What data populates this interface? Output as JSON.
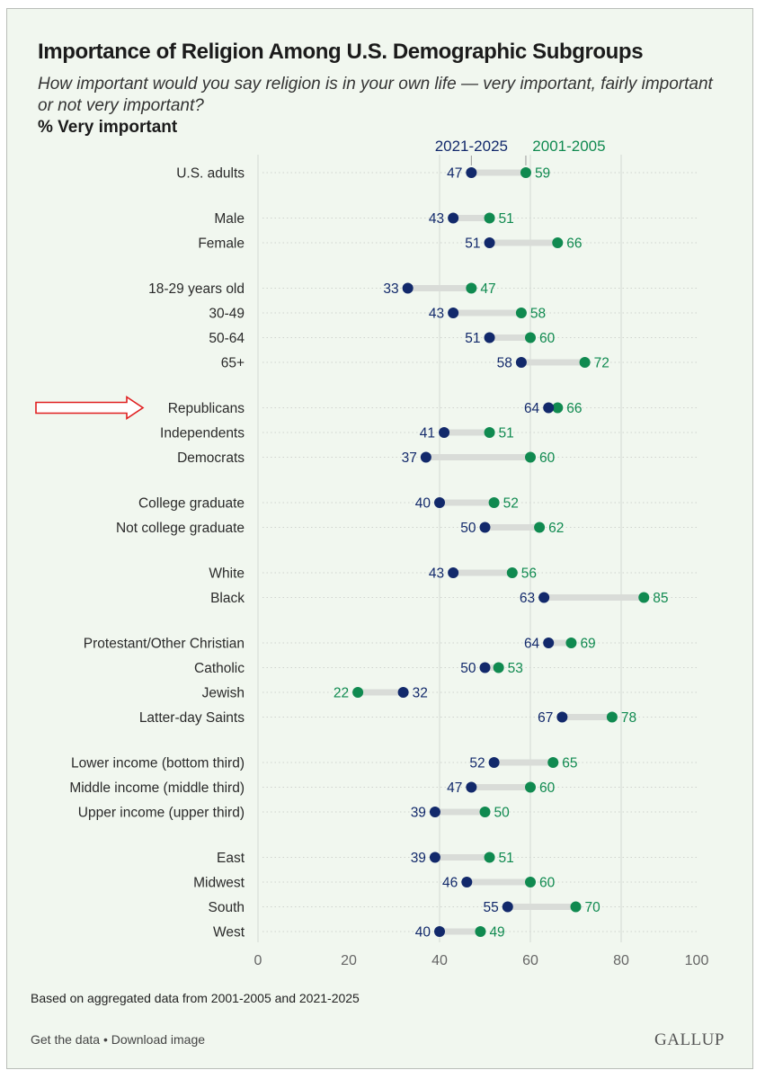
{
  "chart_data": {
    "type": "dumbbell",
    "title": "Importance of Religion Among U.S. Demographic Subgroups",
    "subtitle": "How important would you say religion is in your own life — very important, fairly important or not very important?",
    "ylabel": "% Very important",
    "xlim": [
      0,
      100
    ],
    "xticks": [
      0,
      20,
      40,
      60,
      80,
      100
    ],
    "legend": {
      "recent": "2021-2025",
      "past": "2001-2005"
    },
    "colors": {
      "recent": "#12296b",
      "past": "#108a50",
      "connector": "#d9dcd8"
    },
    "groups": [
      [
        {
          "label": "U.S. adults",
          "recent": 47,
          "past": 59
        }
      ],
      [
        {
          "label": "Male",
          "recent": 43,
          "past": 51
        },
        {
          "label": "Female",
          "recent": 51,
          "past": 66
        }
      ],
      [
        {
          "label": "18-29 years old",
          "recent": 33,
          "past": 47
        },
        {
          "label": "30-49",
          "recent": 43,
          "past": 58
        },
        {
          "label": "50-64",
          "recent": 51,
          "past": 60
        },
        {
          "label": "65+",
          "recent": 58,
          "past": 72
        }
      ],
      [
        {
          "label": "Republicans",
          "recent": 64,
          "past": 66,
          "highlighted": true
        },
        {
          "label": "Independents",
          "recent": 41,
          "past": 51
        },
        {
          "label": "Democrats",
          "recent": 37,
          "past": 60
        }
      ],
      [
        {
          "label": "College graduate",
          "recent": 40,
          "past": 52
        },
        {
          "label": "Not college graduate",
          "recent": 50,
          "past": 62
        }
      ],
      [
        {
          "label": "White",
          "recent": 43,
          "past": 56
        },
        {
          "label": "Black",
          "recent": 63,
          "past": 85
        }
      ],
      [
        {
          "label": "Protestant/Other Christian",
          "recent": 64,
          "past": 69
        },
        {
          "label": "Catholic",
          "recent": 50,
          "past": 53
        },
        {
          "label": "Jewish",
          "recent": 32,
          "past": 22
        },
        {
          "label": "Latter-day Saints",
          "recent": 67,
          "past": 78
        }
      ],
      [
        {
          "label": "Lower income (bottom third)",
          "recent": 52,
          "past": 65
        },
        {
          "label": "Middle income (middle third)",
          "recent": 47,
          "past": 60
        },
        {
          "label": "Upper income (upper third)",
          "recent": 39,
          "past": 50
        }
      ],
      [
        {
          "label": "East",
          "recent": 39,
          "past": 51
        },
        {
          "label": "Midwest",
          "recent": 46,
          "past": 60
        },
        {
          "label": "South",
          "recent": 55,
          "past": 70
        },
        {
          "label": "West",
          "recent": 40,
          "past": 49
        }
      ]
    ],
    "note": "Based on aggregated data from 2001-2005 and 2021-2025"
  },
  "footer": {
    "get_data": "Get the data",
    "separator": "•",
    "download": "Download image",
    "logo": "GALLUP"
  },
  "annotation": {
    "arrow_color": "#e02020",
    "arrow_target": "Republicans"
  }
}
